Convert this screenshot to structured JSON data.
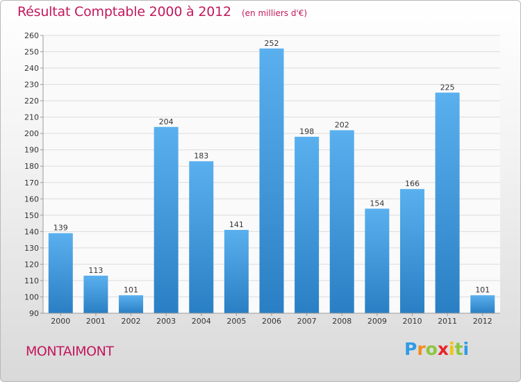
{
  "chart_data": {
    "type": "bar",
    "title": "Résultat Comptable 2000 à 2012",
    "unit_label": "(en milliers d'€)",
    "categories": [
      "2000",
      "2001",
      "2002",
      "2003",
      "2004",
      "2005",
      "2006",
      "2007",
      "2008",
      "2009",
      "2010",
      "2011",
      "2012"
    ],
    "values": [
      139,
      113,
      101,
      204,
      183,
      141,
      252,
      198,
      202,
      154,
      166,
      225,
      101
    ],
    "ylim": [
      90,
      260
    ],
    "yticks": [
      90,
      100,
      110,
      120,
      130,
      140,
      150,
      160,
      170,
      180,
      190,
      200,
      210,
      220,
      230,
      240,
      250,
      260
    ],
    "grid": true,
    "xlabel": "",
    "ylabel": ""
  },
  "commune": "MONTAIMONT",
  "logo": {
    "letters": [
      "P",
      "r",
      "o",
      "x",
      "i",
      "t",
      "i"
    ],
    "colors": [
      "#2e9be6",
      "#f28c1e",
      "#8cc63f",
      "#e8242a",
      "#f4c20d",
      "#8cc63f",
      "#2e9be6"
    ]
  },
  "colors": {
    "bar_top": "#5ab0ee",
    "bar_bottom": "#2a7fc4",
    "title": "#c2185b"
  }
}
